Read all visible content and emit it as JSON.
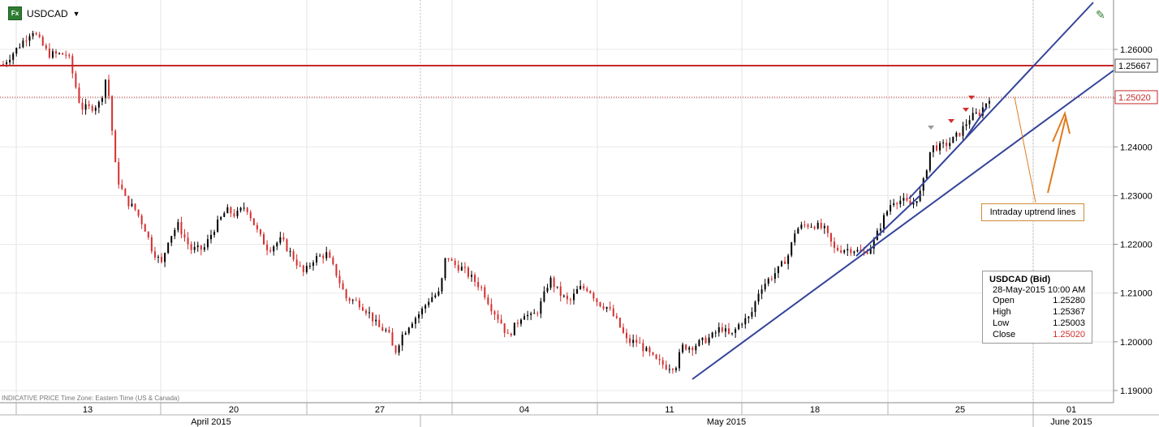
{
  "header": {
    "symbol": "USDCAD",
    "fx_icon": "Fx"
  },
  "footer_note": "INDICATIVE PRICE   Time Zone: Eastern Time (US & Canada)",
  "chart_data": {
    "type": "candlestick",
    "y_ticks": [
      "1.19000",
      "1.20000",
      "1.21000",
      "1.22000",
      "1.23000",
      "1.24000",
      "1.25000",
      "1.26000"
    ],
    "ylim": [
      1.1895,
      1.2685
    ],
    "x_labels": [
      "13",
      "20",
      "27",
      "04",
      "11",
      "18",
      "25",
      "01"
    ],
    "month_labels": [
      "April 2015",
      "May 2015",
      "June 2015"
    ],
    "horizontal_lines": [
      {
        "value": 1.25667,
        "label": "1.25667",
        "color": "#c62828"
      },
      {
        "value": 1.2502,
        "label": "1.25020",
        "color": "#c62828",
        "dotted": true
      }
    ],
    "annotation": "Intraday uptrend lines",
    "ohlc": {
      "title": "USDCAD (Bid)",
      "date": "28-May-2015 10:00 AM",
      "rows": [
        {
          "label": "Open",
          "value": "1.25280"
        },
        {
          "label": "High",
          "value": "1.25367"
        },
        {
          "label": "Low",
          "value": "1.25003"
        },
        {
          "label": "Close",
          "value": "1.25020"
        }
      ]
    },
    "path": [
      [
        0,
        1.257
      ],
      [
        4,
        1.26
      ],
      [
        9,
        1.264
      ],
      [
        14,
        1.259
      ],
      [
        20,
        1.259
      ],
      [
        24,
        1.248
      ],
      [
        27,
        1.248
      ],
      [
        30,
        1.249
      ],
      [
        32,
        1.255
      ],
      [
        35,
        1.234
      ],
      [
        38,
        1.229
      ],
      [
        41,
        1.227
      ],
      [
        44,
        1.223
      ],
      [
        46,
        1.219
      ],
      [
        49,
        1.216
      ],
      [
        51,
        1.221
      ],
      [
        54,
        1.224
      ],
      [
        58,
        1.219
      ],
      [
        62,
        1.219
      ],
      [
        65,
        1.223
      ],
      [
        69,
        1.227
      ],
      [
        72,
        1.226
      ],
      [
        75,
        1.228
      ],
      [
        79,
        1.222
      ],
      [
        82,
        1.219
      ],
      [
        86,
        1.221
      ],
      [
        90,
        1.217
      ],
      [
        93,
        1.214
      ],
      [
        96,
        1.217
      ],
      [
        100,
        1.218
      ],
      [
        103,
        1.214
      ],
      [
        106,
        1.209
      ],
      [
        110,
        1.208
      ],
      [
        113,
        1.206
      ],
      [
        116,
        1.203
      ],
      [
        119,
        1.202
      ],
      [
        121,
        1.1975
      ],
      [
        123,
        1.201
      ],
      [
        126,
        1.204
      ],
      [
        129,
        1.206
      ],
      [
        132,
        1.209
      ],
      [
        135,
        1.21
      ],
      [
        137,
        1.218
      ],
      [
        139,
        1.216
      ],
      [
        142,
        1.215
      ],
      [
        145,
        1.213
      ],
      [
        148,
        1.211
      ],
      [
        151,
        1.207
      ],
      [
        154,
        1.204
      ],
      [
        156,
        1.201
      ],
      [
        158,
        1.203
      ],
      [
        161,
        1.206
      ],
      [
        163,
        1.205
      ],
      [
        165,
        1.206
      ],
      [
        167,
        1.209
      ],
      [
        169,
        1.213
      ],
      [
        172,
        1.21
      ],
      [
        175,
        1.208
      ],
      [
        178,
        1.211
      ],
      [
        181,
        1.211
      ],
      [
        184,
        1.208
      ],
      [
        187,
        1.207
      ],
      [
        190,
        1.204
      ],
      [
        193,
        1.2
      ],
      [
        196,
        1.2
      ],
      [
        199,
        1.198
      ],
      [
        202,
        1.196
      ],
      [
        205,
        1.195
      ],
      [
        208,
        1.195
      ],
      [
        210,
        1.199
      ],
      [
        213,
        1.199
      ],
      [
        216,
        1.2
      ],
      [
        219,
        1.201
      ],
      [
        222,
        1.203
      ],
      [
        225,
        1.201
      ],
      [
        228,
        1.204
      ],
      [
        231,
        1.205
      ],
      [
        234,
        1.211
      ],
      [
        237,
        1.213
      ],
      [
        240,
        1.215
      ],
      [
        243,
        1.218
      ],
      [
        245,
        1.223
      ],
      [
        248,
        1.224
      ],
      [
        251,
        1.224
      ],
      [
        254,
        1.223
      ],
      [
        257,
        1.219
      ],
      [
        260,
        1.219
      ],
      [
        263,
        1.219
      ],
      [
        266,
        1.218
      ],
      [
        269,
        1.22
      ],
      [
        272,
        1.225
      ],
      [
        275,
        1.229
      ],
      [
        278,
        1.229
      ],
      [
        281,
        1.228
      ],
      [
        284,
        1.231
      ],
      [
        287,
        1.24
      ],
      [
        290,
        1.24
      ],
      [
        293,
        1.241
      ],
      [
        296,
        1.243
      ],
      [
        299,
        1.246
      ],
      [
        302,
        1.247
      ],
      [
        305,
        1.2502
      ]
    ],
    "bullish_color": "#000000",
    "bearish_color": "#d32f2f",
    "trendline_color": "#34449a",
    "annotation_color": "#e07b1f"
  }
}
